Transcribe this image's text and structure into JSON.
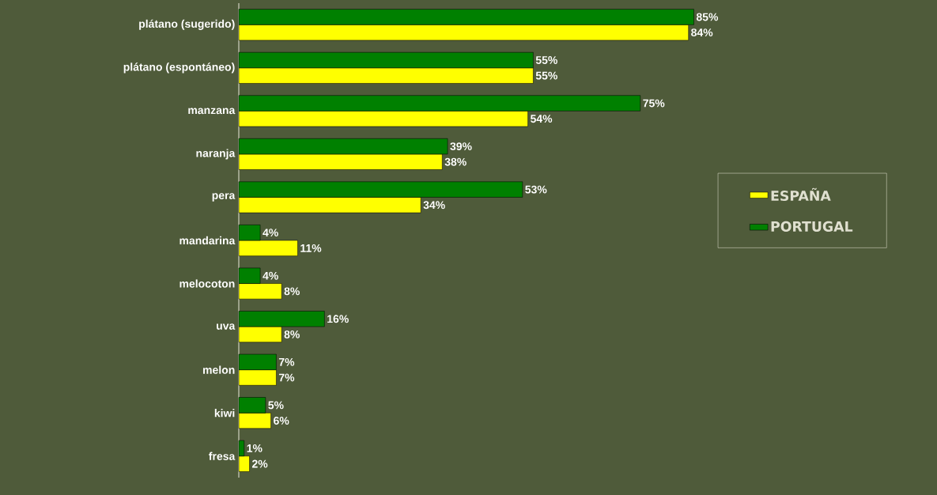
{
  "chart_data": {
    "type": "bar",
    "orientation": "horizontal",
    "categories": [
      "plátano (sugerido)",
      "plátano (espontáneo)",
      "manzana",
      "naranja",
      "pera",
      "mandarina",
      "melocoton",
      "uva",
      "melon",
      "kiwi",
      "fresa"
    ],
    "series": [
      {
        "name": "ESPAÑA",
        "color": "#ffff00",
        "values": [
          84,
          55,
          54,
          38,
          34,
          11,
          8,
          8,
          7,
          6,
          2
        ],
        "value_labels": [
          "84%",
          "55%",
          "54%",
          "38%",
          "34%",
          "11%",
          "8%",
          "8%",
          "7%",
          "6%",
          "2%"
        ]
      },
      {
        "name": "PORTUGAL",
        "color": "#008000",
        "values": [
          85,
          55,
          75,
          39,
          53,
          4,
          4,
          16,
          7,
          5,
          1
        ],
        "value_labels": [
          "85%",
          "55%",
          "75%",
          "39%",
          "53%",
          "4%",
          "4%",
          "16%",
          "7%",
          "5%",
          "1%"
        ]
      }
    ],
    "legend": "right"
  }
}
